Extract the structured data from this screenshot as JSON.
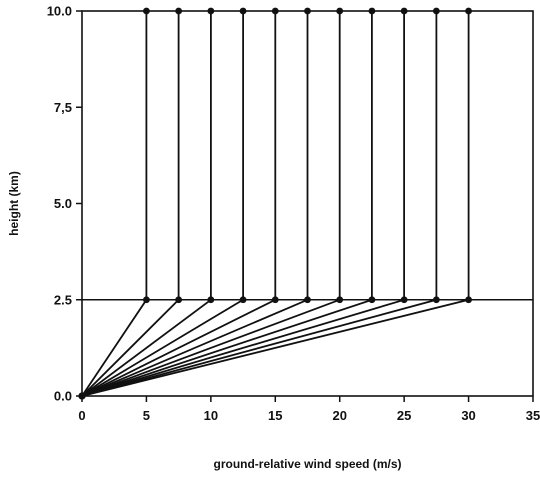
{
  "chart_data": {
    "type": "line",
    "title": "",
    "xlabel": "ground-relative wind speed (m/s)",
    "ylabel": "height (km)",
    "xlim": [
      0,
      35
    ],
    "ylim": [
      0,
      10
    ],
    "x_ticks": [
      0,
      5,
      10,
      15,
      20,
      25,
      30,
      35
    ],
    "x_tick_labels": [
      "0",
      "5",
      "10",
      "15",
      "20",
      "25",
      "30",
      "35"
    ],
    "y_ticks": [
      0,
      2.5,
      5,
      7.5,
      10
    ],
    "y_tick_labels": [
      "0.0",
      "2.5",
      "5.0",
      "7,5",
      "10.0"
    ],
    "reference_lines": [
      {
        "axis": "y",
        "value": 2.5
      }
    ],
    "grid": false,
    "legend": "none",
    "marker": "filled-circle",
    "line_color": "#111111",
    "series": [
      {
        "x": [
          0,
          5,
          5
        ],
        "y": [
          0,
          2.5,
          10
        ]
      },
      {
        "x": [
          0,
          7.5,
          7.5
        ],
        "y": [
          0,
          2.5,
          10
        ]
      },
      {
        "x": [
          0,
          10,
          10
        ],
        "y": [
          0,
          2.5,
          10
        ]
      },
      {
        "x": [
          0,
          12.5,
          12.5
        ],
        "y": [
          0,
          2.5,
          10
        ]
      },
      {
        "x": [
          0,
          15,
          15
        ],
        "y": [
          0,
          2.5,
          10
        ]
      },
      {
        "x": [
          0,
          17.5,
          17.5
        ],
        "y": [
          0,
          2.5,
          10
        ]
      },
      {
        "x": [
          0,
          20,
          20
        ],
        "y": [
          0,
          2.5,
          10
        ]
      },
      {
        "x": [
          0,
          22.5,
          22.5
        ],
        "y": [
          0,
          2.5,
          10
        ]
      },
      {
        "x": [
          0,
          25,
          25
        ],
        "y": [
          0,
          2.5,
          10
        ]
      },
      {
        "x": [
          0,
          27.5,
          27.5
        ],
        "y": [
          0,
          2.5,
          10
        ]
      },
      {
        "x": [
          0,
          30,
          30
        ],
        "y": [
          0,
          2.5,
          10
        ]
      }
    ]
  }
}
